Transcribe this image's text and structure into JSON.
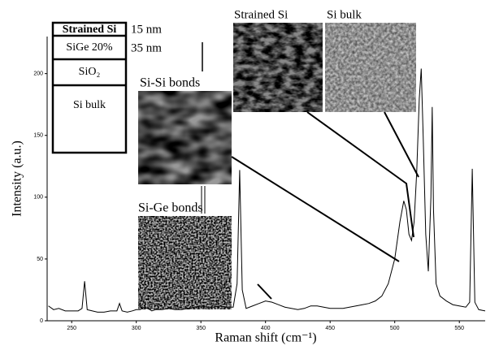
{
  "chart_data": {
    "type": "line",
    "x_label": "Raman shift (cm⁻¹)",
    "y_label": "Intensity (a.u.)",
    "color": "#000000",
    "x": [
      232,
      236,
      240,
      245,
      250,
      255,
      258,
      260,
      262,
      266,
      270,
      275,
      280,
      285,
      287,
      289,
      293,
      297,
      300,
      303,
      306,
      309,
      312,
      315,
      320,
      325,
      330,
      335,
      340,
      345,
      350,
      355,
      360,
      365,
      370,
      375,
      378,
      380,
      382,
      385,
      390,
      395,
      400,
      405,
      410,
      415,
      420,
      425,
      430,
      435,
      440,
      445,
      450,
      455,
      460,
      465,
      470,
      475,
      480,
      485,
      490,
      495,
      500,
      504,
      507,
      509,
      511,
      513,
      515,
      517,
      519,
      520.5,
      522,
      524,
      526,
      528,
      529,
      530,
      532,
      535,
      540,
      545,
      550,
      555,
      558,
      560,
      562,
      565,
      570
    ],
    "values": [
      12,
      9,
      10,
      8,
      8,
      8,
      10,
      32,
      9,
      8,
      7,
      7,
      8,
      8,
      14,
      8,
      7,
      8,
      9,
      9,
      11,
      10,
      8,
      9,
      9,
      10,
      9,
      9,
      10,
      11,
      12,
      11,
      11,
      12,
      11,
      11,
      30,
      122,
      25,
      10,
      12,
      14,
      16,
      15,
      13,
      11,
      10,
      9,
      10,
      12,
      12,
      11,
      10,
      10,
      10,
      11,
      12,
      13,
      14,
      16,
      20,
      30,
      50,
      80,
      97,
      90,
      70,
      65,
      80,
      120,
      180,
      204,
      150,
      70,
      40,
      100,
      173,
      90,
      30,
      20,
      16,
      13,
      12,
      11,
      15,
      123,
      15,
      9,
      8
    ],
    "xlim": [
      231,
      570
    ],
    "ylim": [
      0,
      230
    ],
    "xticks": [
      250,
      300,
      350,
      400,
      450,
      500,
      550
    ],
    "yticks": [
      0,
      50,
      100,
      150,
      200
    ],
    "layer_stack": [
      "Strained Si",
      "SiGe 20%",
      "SiO₂",
      "Si bulk"
    ],
    "layer_thickness": [
      "15 nm",
      "35 nm"
    ],
    "inset_labels": [
      "Si-Si bonds",
      "Si-Ge bonds",
      "Strained Si",
      "Si bulk"
    ]
  }
}
